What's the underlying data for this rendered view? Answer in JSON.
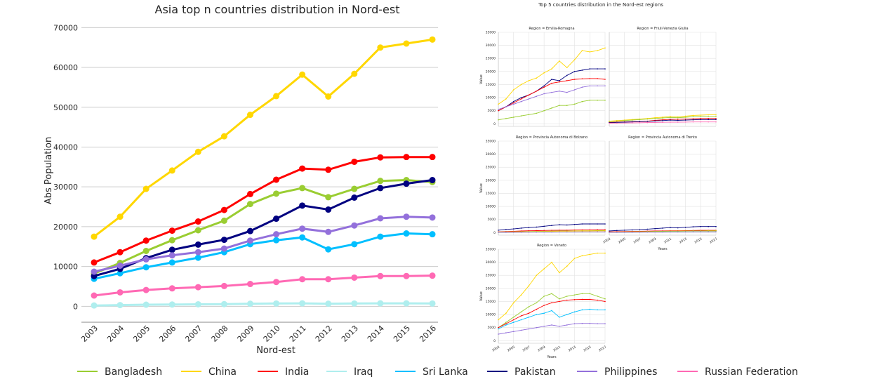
{
  "chart_data": [
    {
      "type": "line",
      "title": "Asia top n countries distribution in Nord-est",
      "xlabel": "Nord-est",
      "ylabel": "Abs Population",
      "x": [
        2003,
        2004,
        2005,
        2006,
        2007,
        2008,
        2009,
        2010,
        2011,
        2012,
        2013,
        2014,
        2015,
        2016
      ],
      "ylim": [
        -4000,
        72000
      ],
      "yticks": [
        0,
        10000,
        20000,
        30000,
        40000,
        50000,
        60000,
        70000
      ],
      "grid": "horizontal",
      "legend_position": "bottom",
      "series": [
        {
          "name": "Bangladesh",
          "color": "#9ACD32",
          "values": [
            8200,
            10900,
            13900,
            16600,
            19100,
            21500,
            25700,
            28300,
            29700,
            27400,
            29500,
            31500,
            31700,
            31200
          ]
        },
        {
          "name": "China",
          "color": "#FFD700",
          "values": [
            17500,
            22500,
            29500,
            34100,
            38800,
            42700,
            48100,
            52800,
            58200,
            52700,
            58400,
            65000,
            66000,
            67000
          ]
        },
        {
          "name": "India",
          "color": "#FF0000",
          "values": [
            11000,
            13600,
            16500,
            19000,
            21300,
            24200,
            28200,
            31800,
            34600,
            34300,
            36300,
            37400,
            37500,
            37500
          ]
        },
        {
          "name": "Iraq",
          "color": "#AFEEEE",
          "values": [
            200,
            300,
            400,
            450,
            500,
            550,
            650,
            700,
            750,
            650,
            700,
            750,
            750,
            700
          ]
        },
        {
          "name": "Sri Lanka",
          "color": "#00BFFF",
          "values": [
            6900,
            8300,
            9800,
            11000,
            12200,
            13600,
            15600,
            16600,
            17300,
            14300,
            15600,
            17500,
            18300,
            18100
          ]
        },
        {
          "name": "Pakistan",
          "color": "#000080",
          "values": [
            7600,
            9400,
            12100,
            14200,
            15500,
            16700,
            18900,
            22000,
            25300,
            24300,
            27300,
            29700,
            30800,
            31700
          ]
        },
        {
          "name": "Philippines",
          "color": "#9370DB",
          "values": [
            8700,
            10200,
            11800,
            12800,
            13600,
            14500,
            16500,
            18100,
            19500,
            18700,
            20300,
            22100,
            22500,
            22300
          ]
        },
        {
          "name": "Russian Federation",
          "color": "#FF69B4",
          "values": [
            2700,
            3500,
            4100,
            4500,
            4800,
            5100,
            5600,
            6100,
            6800,
            6800,
            7200,
            7600,
            7600,
            7700
          ]
        }
      ]
    },
    {
      "type": "line",
      "title": "Top 5 countries distribution in the Nord-est regions",
      "xlabel": "Years",
      "ylabel": "Value",
      "ylim": [
        -1000,
        35000
      ],
      "yticks": [
        0,
        5000,
        10000,
        15000,
        20000,
        25000,
        30000,
        35000
      ],
      "xticks": [
        2003,
        2005,
        2007,
        2009,
        2011,
        2013,
        2015,
        2017
      ],
      "x": [
        2003,
        2004,
        2005,
        2006,
        2007,
        2008,
        2009,
        2010,
        2011,
        2012,
        2013,
        2014,
        2015,
        2016,
        2017
      ],
      "panels": [
        {
          "title": "Region = Emilia-Romagna",
          "series": [
            {
              "color": "#FFD700",
              "values": [
                7500,
                9500,
                13000,
                15000,
                16500,
                17500,
                19500,
                21000,
                24000,
                21500,
                24500,
                28000,
                27500,
                28000,
                29000
              ]
            },
            {
              "color": "#000080",
              "values": [
                5000,
                6500,
                8500,
                10000,
                11000,
                12500,
                14500,
                17000,
                16500,
                18500,
                20000,
                20500,
                21000,
                21000,
                21000
              ]
            },
            {
              "color": "#FF0000",
              "values": [
                5000,
                6500,
                8000,
                9500,
                11000,
                12500,
                14000,
                15500,
                16000,
                16500,
                17000,
                17200,
                17300,
                17300,
                17000
              ]
            },
            {
              "color": "#9370DB",
              "values": [
                5500,
                6500,
                7500,
                8500,
                9500,
                10500,
                11500,
                12000,
                12500,
                12000,
                13000,
                14000,
                14500,
                14500,
                14500
              ]
            },
            {
              "color": "#9ACD32",
              "values": [
                1500,
                2000,
                2500,
                3000,
                3500,
                4000,
                5000,
                6000,
                7000,
                7000,
                7500,
                8500,
                9000,
                9000,
                9000
              ]
            }
          ]
        },
        {
          "title": "Region = Friuli-Venezia Giulia",
          "series": [
            {
              "color": "#FFD700",
              "values": [
                1000,
                1200,
                1400,
                1600,
                1800,
                2000,
                2300,
                2500,
                2800,
                2600,
                2900,
                3200,
                3300,
                3400,
                3400
              ]
            },
            {
              "color": "#9ACD32",
              "values": [
                800,
                1000,
                1200,
                1400,
                1600,
                1800,
                2000,
                2200,
                2400,
                2300,
                2500,
                2700,
                2800,
                2800,
                2800
              ]
            },
            {
              "color": "#FF0000",
              "values": [
                500,
                600,
                700,
                800,
                900,
                1000,
                1300,
                1500,
                1700,
                1700,
                1800,
                1900,
                2000,
                2000,
                2000
              ]
            },
            {
              "color": "#000080",
              "values": [
                400,
                500,
                600,
                700,
                800,
                900,
                1100,
                1200,
                1400,
                1300,
                1400,
                1500,
                1600,
                1600,
                1600
              ]
            },
            {
              "color": "#FF69B4",
              "values": [
                200,
                250,
                300,
                350,
                400,
                450,
                500,
                550,
                600,
                600,
                650,
                700,
                700,
                700,
                700
              ]
            }
          ]
        },
        {
          "title": "Region = Provincia Autonoma di Bolzano",
          "series": [
            {
              "color": "#000080",
              "values": [
                900,
                1200,
                1400,
                1700,
                1900,
                2100,
                2400,
                2700,
                3000,
                2900,
                3100,
                3300,
                3300,
                3300,
                3300
              ]
            },
            {
              "color": "#FF0000",
              "values": [
                300,
                400,
                500,
                600,
                700,
                750,
                800,
                850,
                900,
                900,
                950,
                1000,
                1050,
                1100,
                1100
              ]
            },
            {
              "color": "#9ACD32",
              "values": [
                200,
                250,
                300,
                350,
                400,
                450,
                500,
                550,
                600,
                600,
                650,
                700,
                700,
                750,
                750
              ]
            },
            {
              "color": "#FFD700",
              "values": [
                100,
                150,
                200,
                250,
                300,
                350,
                400,
                450,
                500,
                500,
                550,
                600,
                600,
                650,
                650
              ]
            },
            {
              "color": "#9370DB",
              "values": [
                50,
                80,
                100,
                120,
                150,
                180,
                200,
                220,
                250,
                250,
                270,
                300,
                300,
                300,
                300
              ]
            }
          ]
        },
        {
          "title": "Region = Provincia Autonoma di Trento",
          "series": [
            {
              "color": "#000080",
              "values": [
                600,
                800,
                900,
                1000,
                1100,
                1300,
                1500,
                1700,
                1900,
                1800,
                2000,
                2200,
                2300,
                2300,
                2300
              ]
            },
            {
              "color": "#FF0000",
              "values": [
                300,
                350,
                400,
                450,
                500,
                550,
                600,
                650,
                700,
                700,
                750,
                800,
                850,
                850,
                850
              ]
            },
            {
              "color": "#FFD700",
              "values": [
                150,
                200,
                250,
                300,
                350,
                400,
                450,
                500,
                550,
                550,
                600,
                650,
                650,
                700,
                700
              ]
            },
            {
              "color": "#9ACD32",
              "values": [
                100,
                150,
                200,
                250,
                300,
                350,
                400,
                450,
                500,
                500,
                550,
                600,
                600,
                600,
                600
              ]
            },
            {
              "color": "#9370DB",
              "values": [
                50,
                80,
                100,
                120,
                150,
                180,
                200,
                220,
                250,
                250,
                270,
                300,
                300,
                300,
                300
              ]
            }
          ]
        },
        {
          "title": "Region = Veneto",
          "series": [
            {
              "color": "#FFD700",
              "values": [
                8000,
                10500,
                14500,
                17500,
                21000,
                25000,
                27500,
                30000,
                26000,
                28500,
                31500,
                32500,
                33000,
                33500,
                33500
              ]
            },
            {
              "color": "#9ACD32",
              "values": [
                5000,
                7000,
                9000,
                11000,
                13000,
                14500,
                17000,
                18000,
                16000,
                17000,
                17500,
                18000,
                18000,
                17000,
                16000
              ]
            },
            {
              "color": "#FF0000",
              "values": [
                5000,
                6500,
                8000,
                9500,
                10500,
                12000,
                13500,
                14500,
                15000,
                15500,
                15700,
                15800,
                15800,
                15500,
                15000
              ]
            },
            {
              "color": "#00BFFF",
              "values": [
                4500,
                6000,
                7000,
                8000,
                9000,
                10000,
                10500,
                11500,
                9000,
                10000,
                11000,
                11800,
                12000,
                11800,
                11800
              ]
            },
            {
              "color": "#9370DB",
              "values": [
                2500,
                3000,
                3500,
                4000,
                4500,
                5000,
                5500,
                6000,
                5500,
                6000,
                6500,
                6600,
                6600,
                6500,
                6500
              ]
            }
          ]
        }
      ]
    }
  ]
}
